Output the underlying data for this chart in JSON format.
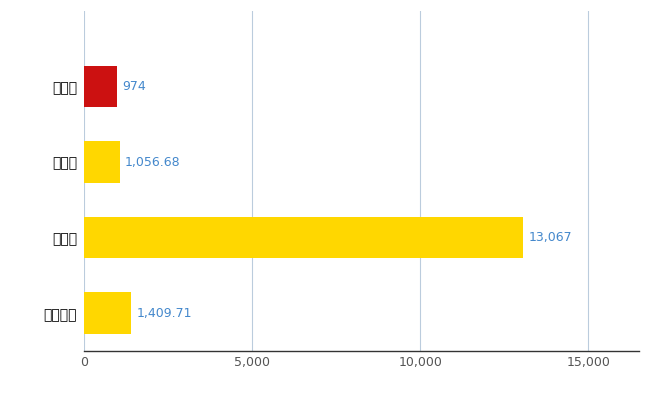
{
  "categories": [
    "栗原市",
    "県平均",
    "県最大",
    "全国平均"
  ],
  "values": [
    974,
    1056.68,
    13067,
    1409.71
  ],
  "colors": [
    "#CC1111",
    "#FFD700",
    "#FFD700",
    "#FFD700"
  ],
  "labels": [
    "974",
    "1,056.68",
    "13,067",
    "1,409.71"
  ],
  "xlim": [
    0,
    16500
  ],
  "xticks": [
    0,
    5000,
    10000,
    15000
  ],
  "bar_height": 0.55,
  "label_color": "#4488CC",
  "grid_color": "#BBCCDD",
  "background_color": "#FFFFFF",
  "label_fontsize": 9,
  "ytick_fontsize": 10
}
